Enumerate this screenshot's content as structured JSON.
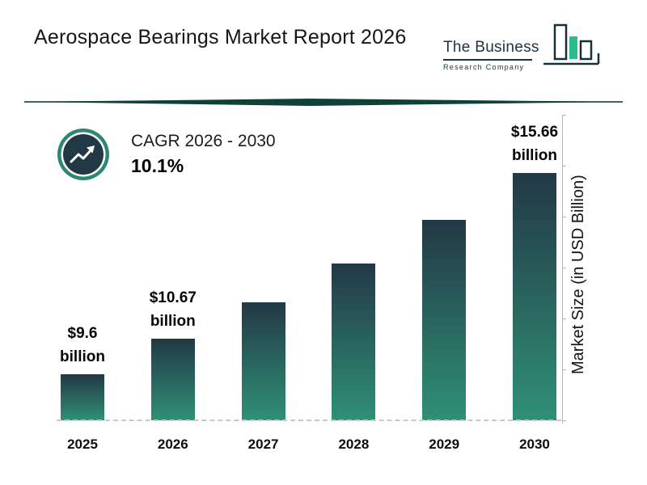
{
  "header": {
    "title": "Aerospace Bearings Market Report 2026",
    "logo": {
      "line1": "The Business",
      "line2": "Research Company"
    }
  },
  "cagr": {
    "label": "CAGR 2026 - 2030",
    "value": "10.1%"
  },
  "chart_data": {
    "type": "bar",
    "title": "Aerospace Bearings Market Report 2026",
    "categories": [
      "2025",
      "2026",
      "2027",
      "2028",
      "2029",
      "2030"
    ],
    "values": [
      9.6,
      10.67,
      11.75,
      12.93,
      14.24,
      15.66
    ],
    "value_labels": [
      {
        "line1": "$9.6",
        "line2": "billion"
      },
      {
        "line1": "$10.67",
        "line2": "billion"
      },
      null,
      null,
      null,
      {
        "line1": "$15.66",
        "line2": "billion"
      }
    ],
    "xlabel": "",
    "ylabel": "Market Size (in USD Billion)",
    "ylim": [
      8.2,
      16
    ],
    "grid": false,
    "legend": false,
    "colors": {
      "bar_gradient_top": "#233845",
      "bar_gradient_bottom": "#2f9077",
      "accent_teal": "#2e8770",
      "icon_center": "#233845",
      "divider": "#11403a",
      "logo_green": "#2abd8d",
      "logo_dark": "#16313c"
    }
  }
}
